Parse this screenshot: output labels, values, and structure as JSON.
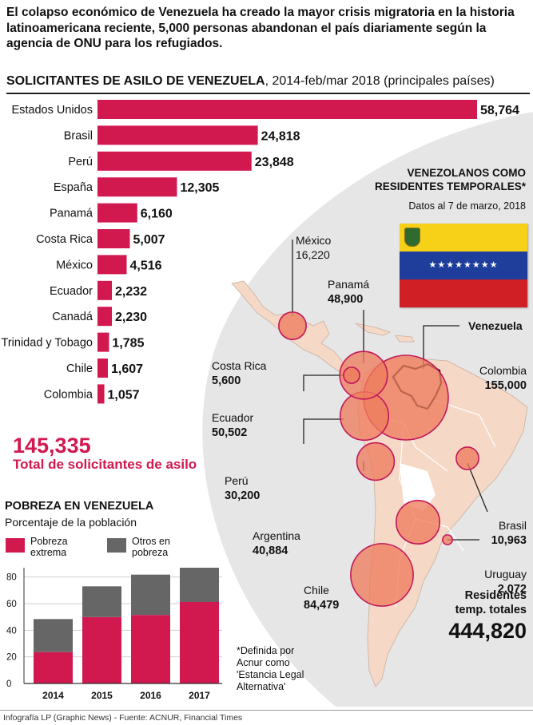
{
  "headline": "El colapso económico de Venezuela ha creado la mayor crisis migratoria en la historia latinoamericana reciente, 5,000 personas abandonan el país diariamente según la agencia de ONU para los refugiados.",
  "asylum": {
    "title_bold": "SOLICITANTES DE ASILO DE VENEZUELA",
    "title_rest": ", 2014-feb/mar 2018 (principales países)",
    "total_value": "145,335",
    "total_label": "Total de solicitantes de asilo"
  },
  "temporary_residents": {
    "title_line1": "VENEZOLANOS COMO",
    "title_line2": "RESIDENTES TEMPORALES*",
    "date": "Datos al 7 de marzo, 2018",
    "venezuela_label": "Venezuela",
    "total_label_line1": "Residentes",
    "total_label_line2": "temp. totales",
    "total_value": "444,820"
  },
  "poverty": {
    "title": "POBREZA EN VENEZUELA",
    "subtitle": "Porcentaje de la población",
    "legend_extreme_line1": "Pobreza",
    "legend_extreme_line2": "extrema",
    "legend_other_line1": "Otros en",
    "legend_other_line2": "pobreza"
  },
  "footnote_lines": [
    "*Definida por",
    "Acnur como",
    "'Estancia Legal",
    "Alternativa'"
  ],
  "credits": "Infografía LP (Graphic News) - Fuente: ACNUR, Financial Times",
  "colors": {
    "accent": "#d1184f",
    "grey": "#666666",
    "map_circle": "#ee7c5e",
    "land": "#f6d8c6",
    "panel": "#e6e6e6",
    "flag_yellow": "#f7d117",
    "flag_blue": "#1f3e9c",
    "flag_red": "#d11f26"
  },
  "chart_data": [
    {
      "type": "bar",
      "orientation": "horizontal",
      "title": "SOLICITANTES DE ASILO DE VENEZUELA, 2014-feb/mar 2018 (principales países)",
      "categories": [
        "Estados Unidos",
        "Brasil",
        "Perú",
        "España",
        "Panamá",
        "Costa Rica",
        "México",
        "Ecuador",
        "Canadá",
        "Trinidad y Tobago",
        "Chile",
        "Colombia"
      ],
      "values": [
        58764,
        24818,
        23848,
        12305,
        6160,
        5007,
        4516,
        2232,
        2230,
        1785,
        1607,
        1057
      ],
      "value_labels": [
        "58,764",
        "24,818",
        "23,848",
        "12,305",
        "6,160",
        "5,007",
        "4,516",
        "2,232",
        "2,230",
        "1,785",
        "1,607",
        "1,057"
      ]
    },
    {
      "type": "bar",
      "stacked": true,
      "title": "POBREZA EN VENEZUELA",
      "subtitle": "Porcentaje de la población",
      "categories": [
        "2014",
        "2015",
        "2016",
        "2017"
      ],
      "series": [
        {
          "name": "Pobreza extrema",
          "values": [
            23.6,
            49.9,
            51.5,
            61.2
          ]
        },
        {
          "name": "Otros en pobreza",
          "values": [
            24.8,
            23.1,
            30.3,
            25.8
          ]
        }
      ],
      "ylim": [
        0,
        87
      ],
      "yticks": [
        "0",
        "20",
        "40",
        "60",
        "80"
      ]
    },
    {
      "type": "bubble_map",
      "title": "VENEZOLANOS COMO RESIDENTES TEMPORALES*",
      "points": [
        {
          "name": "México",
          "value": 16220,
          "value_label": "16,220"
        },
        {
          "name": "Panamá",
          "value": 48900,
          "value_label": "48,900"
        },
        {
          "name": "Costa Rica",
          "value": 5600,
          "value_label": "5,600"
        },
        {
          "name": "Colombia",
          "value": 155000,
          "value_label": "155,000"
        },
        {
          "name": "Ecuador",
          "value": 50502,
          "value_label": "50,502"
        },
        {
          "name": "Perú",
          "value": 30200,
          "value_label": "30,200"
        },
        {
          "name": "Brasil",
          "value": 10963,
          "value_label": "10,963"
        },
        {
          "name": "Argentina",
          "value": 40884,
          "value_label": "40,884"
        },
        {
          "name": "Uruguay",
          "value": 2072,
          "value_label": "2,072"
        },
        {
          "name": "Chile",
          "value": 84479,
          "value_label": "84,479"
        }
      ]
    }
  ]
}
